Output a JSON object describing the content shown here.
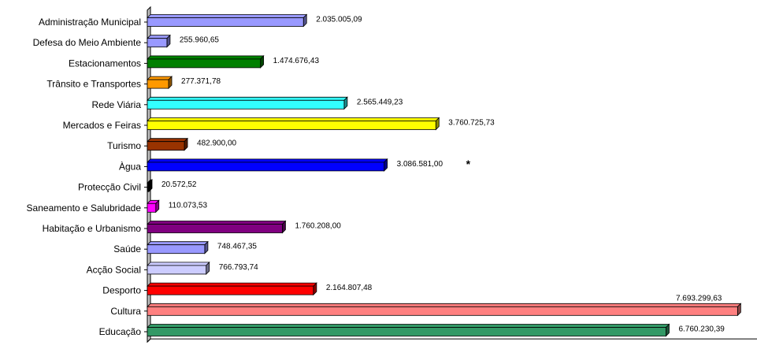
{
  "chart_data": {
    "type": "bar",
    "orientation": "horizontal",
    "three_d": true,
    "grid": false,
    "categories": [
      "Administração Municipal",
      "Defesa do Meio Ambiente",
      "Estacionamentos",
      "Trânsito e Transportes",
      "Rede Viária",
      "Mercados e Feiras",
      "Turismo",
      "Àgua",
      "Protecção Civil",
      "Saneamento e Salubridade",
      "Habitação e Urbanismo",
      "Saúde",
      "Acção Social",
      "Desporto",
      "Cultura",
      "Educação"
    ],
    "values": [
      2035005.09,
      255960.65,
      1474676.43,
      277371.78,
      2565449.23,
      3760725.73,
      482900.0,
      3086581.0,
      20572.52,
      110073.53,
      1760208.0,
      748467.35,
      766793.74,
      2164807.48,
      7693299.63,
      6760230.39
    ],
    "value_labels": [
      "2.035.005,09",
      "255.960,65",
      "1.474.676,43",
      "277.371,78",
      "2.565.449,23",
      "3.760.725,73",
      "482.900,00",
      "3.086.581,00",
      "20.572,52",
      "110.073,53",
      "1.760.208,00",
      "748.467,35",
      "766.793,74",
      "2.164.807,48",
      "7.693.299,63",
      "6.760.230,39"
    ],
    "colors": [
      "#9999ff",
      "#9999ff",
      "#008000",
      "#ff9900",
      "#33ffff",
      "#ffff00",
      "#993300",
      "#0000ff",
      "#000000",
      "#ff00ff",
      "#800080",
      "#9999ff",
      "#ccccff",
      "#ff0000",
      "#ff8080",
      "#339966"
    ],
    "annotations": [
      {
        "category": "Àgua",
        "text": "*"
      }
    ],
    "xlim": [
      0,
      7700000
    ],
    "title": "",
    "xlabel": "",
    "ylabel": ""
  }
}
